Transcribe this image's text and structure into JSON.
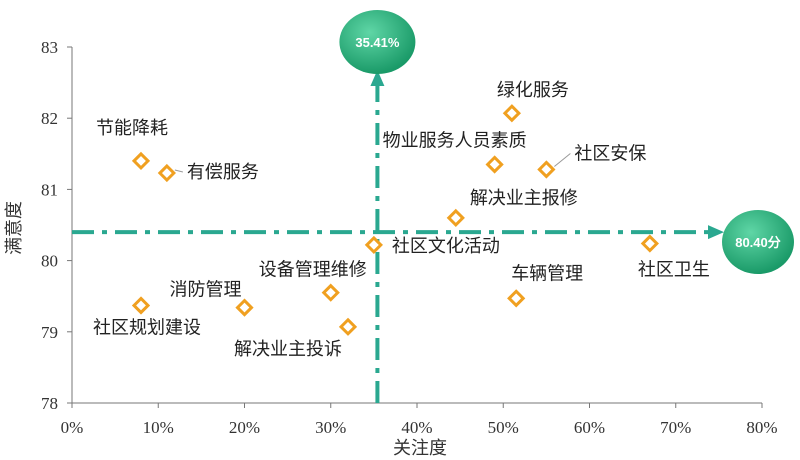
{
  "chart_data": {
    "type": "scatter",
    "xlabel": "关注度",
    "ylabel": "满意度",
    "xlim": [
      0,
      80
    ],
    "ylim": [
      78,
      83
    ],
    "x_ticks": [
      "0%",
      "10%",
      "20%",
      "30%",
      "40%",
      "50%",
      "60%",
      "70%",
      "80%"
    ],
    "y_ticks": [
      "78",
      "79",
      "80",
      "81",
      "82",
      "83"
    ],
    "grid": false,
    "marker": "diamond",
    "colors": {
      "marker": "#f0a020",
      "guide": "#2aa890",
      "badge": "#1a9a68"
    },
    "reference_x": {
      "value": 35.41,
      "label": "35.41%"
    },
    "reference_y": {
      "value": 80.4,
      "label": "80.40分"
    },
    "points": [
      {
        "name": "节能降耗",
        "x": 8,
        "y": 81.4
      },
      {
        "name": "有偿服务",
        "x": 11,
        "y": 81.23
      },
      {
        "name": "绿化服务",
        "x": 51,
        "y": 82.07
      },
      {
        "name": "物业服务人员素质",
        "x": 49,
        "y": 81.35
      },
      {
        "name": "社区安保",
        "x": 55,
        "y": 81.28
      },
      {
        "name": "解决业主报修",
        "x": 44.5,
        "y": 80.6
      },
      {
        "name": "社区文化活动",
        "x": 35,
        "y": 80.22
      },
      {
        "name": "社区卫生",
        "x": 67,
        "y": 80.24
      },
      {
        "name": "设备管理维修",
        "x": 30,
        "y": 79.55
      },
      {
        "name": "消防管理",
        "x": 20,
        "y": 79.34
      },
      {
        "name": "社区规划建设",
        "x": 8,
        "y": 79.37
      },
      {
        "name": "解决业主投诉",
        "x": 32,
        "y": 79.07
      },
      {
        "name": "车辆管理",
        "x": 51.5,
        "y": 79.47
      }
    ]
  }
}
